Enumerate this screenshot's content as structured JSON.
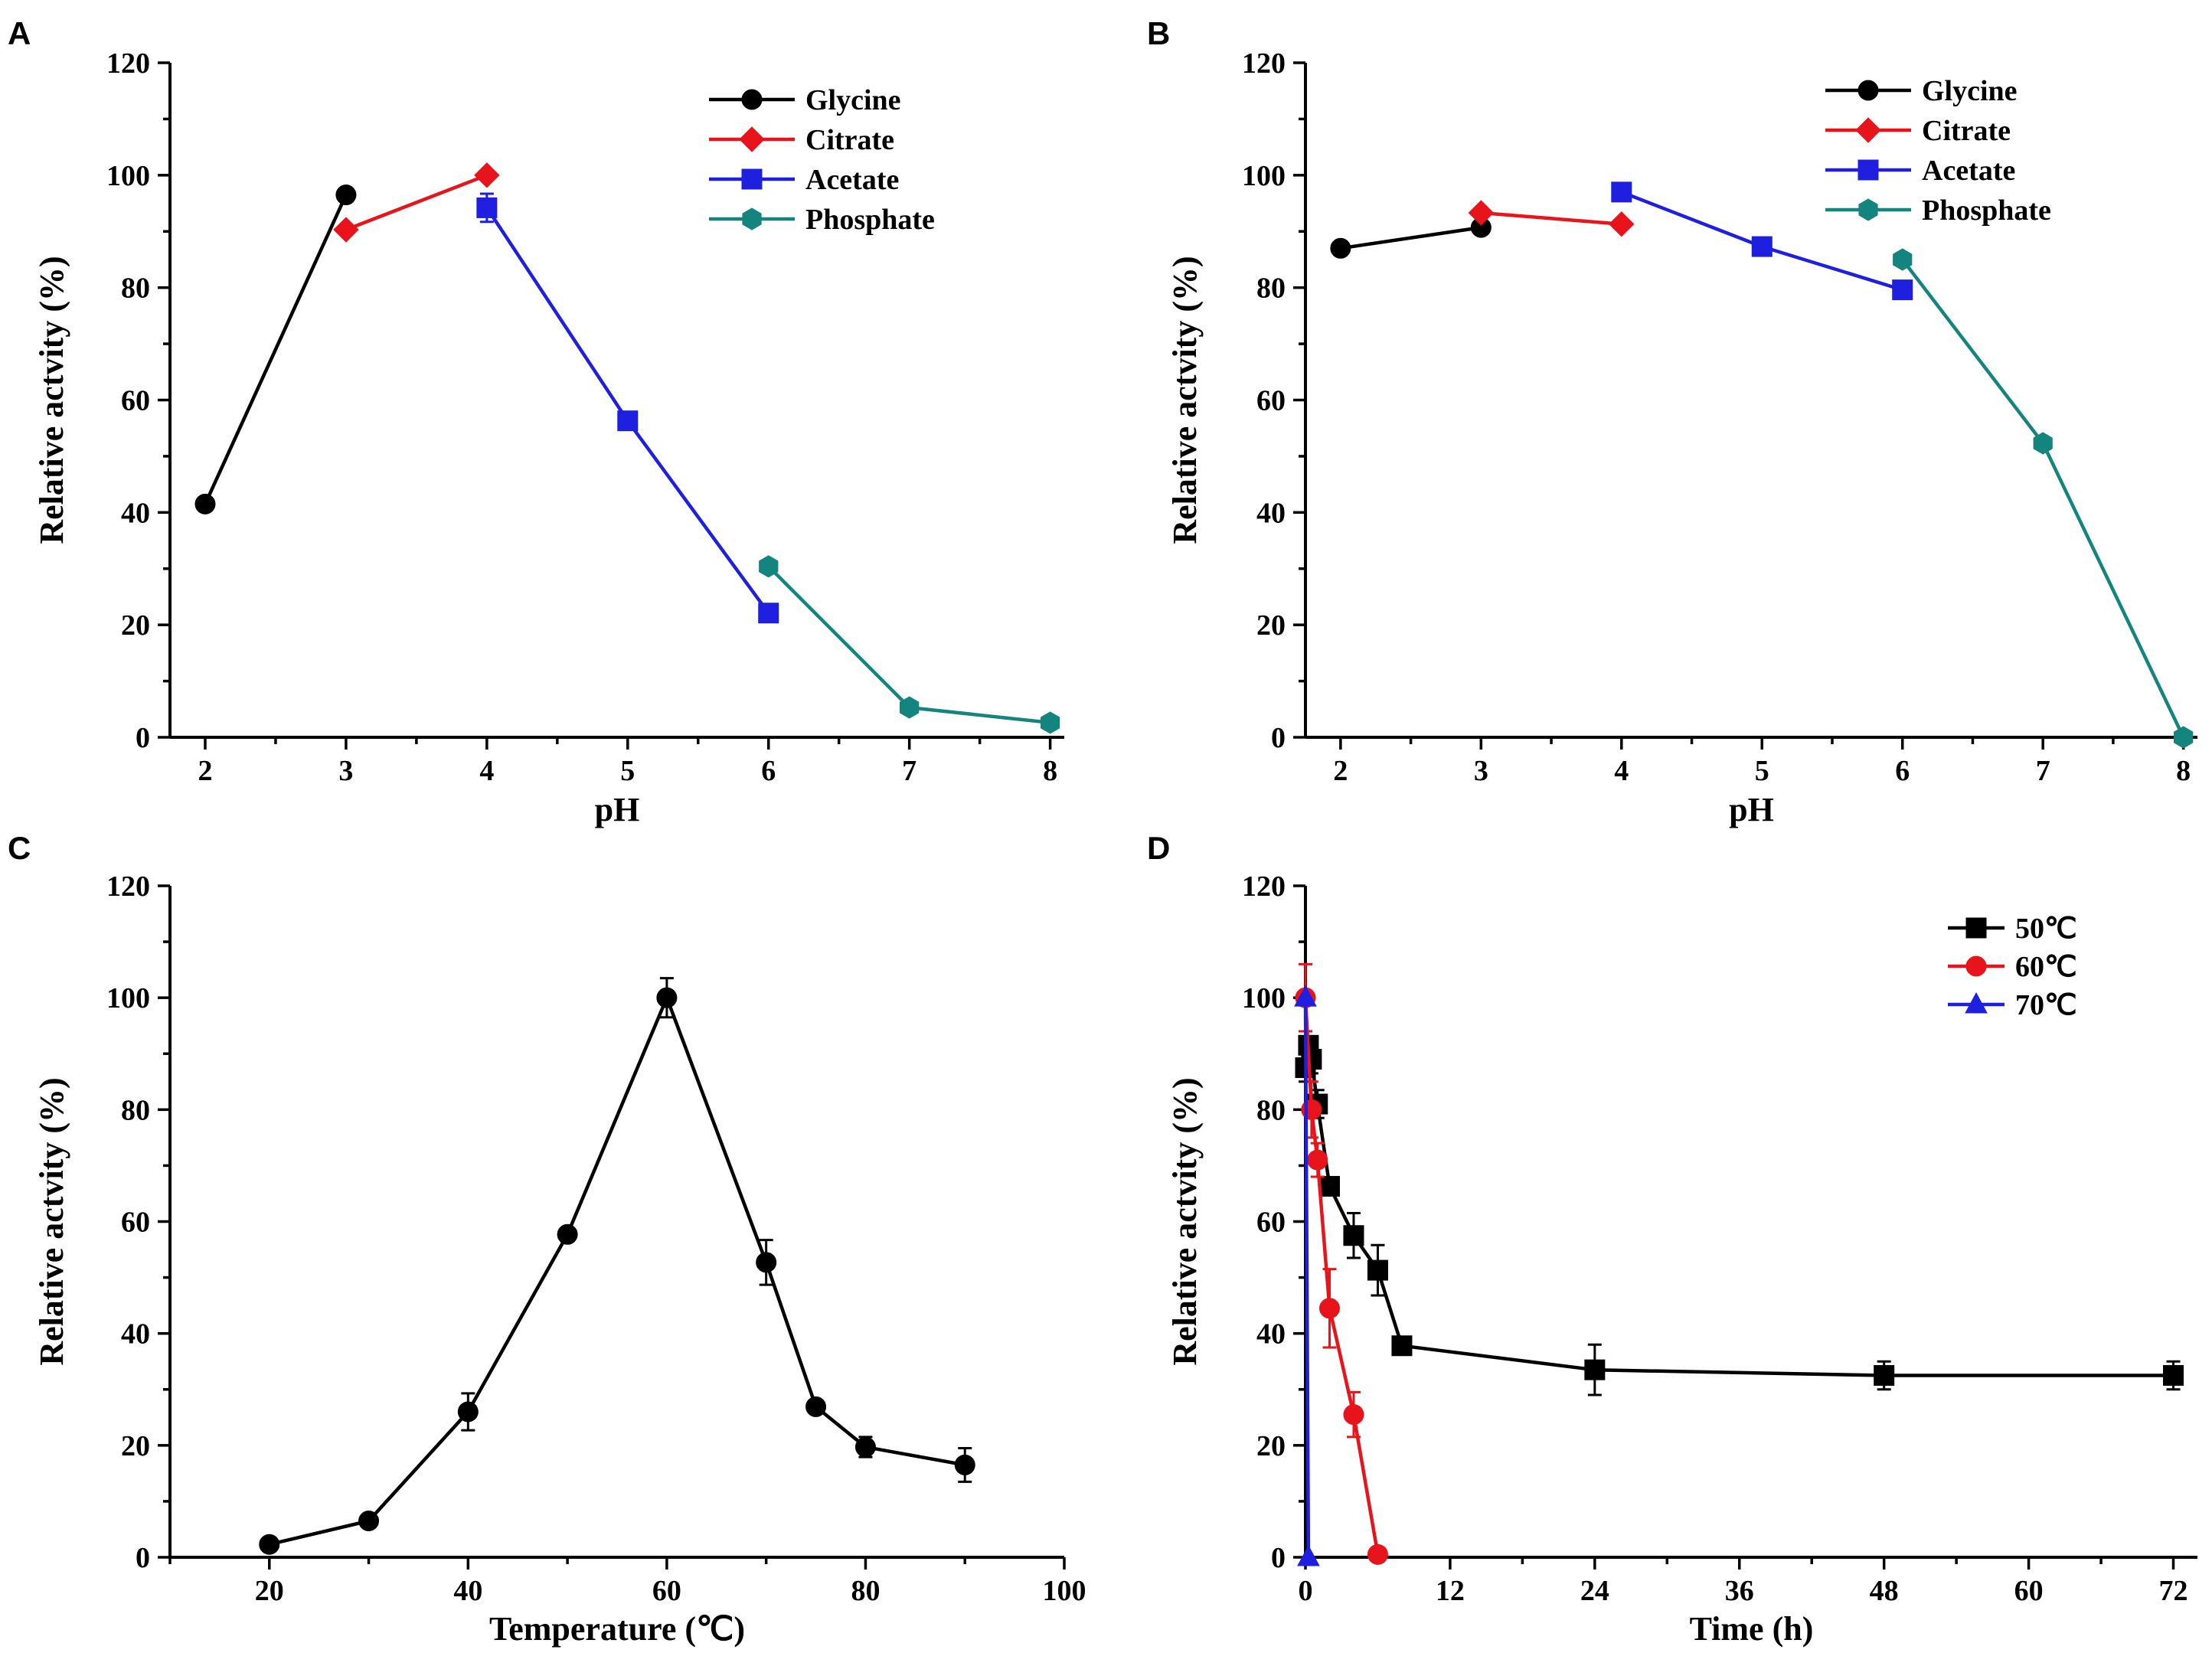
{
  "chart_data": [
    {
      "panel": "A",
      "type": "line",
      "xlabel": "pH",
      "ylabel": "Relative actvity (%)",
      "xlim": [
        1.75,
        8.1
      ],
      "ylim": [
        0,
        120
      ],
      "xticks": [
        2,
        3,
        4,
        5,
        6,
        7,
        8
      ],
      "yticks": [
        0,
        20,
        40,
        60,
        80,
        100,
        120
      ],
      "legend_position": "top-right",
      "series": [
        {
          "name": "Glycine",
          "color": "#000000",
          "marker": "circle",
          "x": [
            2,
            3
          ],
          "y": [
            41.5,
            96.5
          ],
          "err": [
            0,
            0
          ]
        },
        {
          "name": "Citrate",
          "color": "#e8141c",
          "marker": "diamond",
          "x": [
            3,
            4
          ],
          "y": [
            90.3,
            100.0
          ],
          "err": [
            0,
            0
          ]
        },
        {
          "name": "Acetate",
          "color": "#1f1fe0",
          "marker": "square",
          "x": [
            4,
            5,
            6
          ],
          "y": [
            94.2,
            56.3,
            22.1
          ],
          "err": [
            2.5,
            0,
            0
          ]
        },
        {
          "name": "Phosphate",
          "color": "#14857e",
          "marker": "hexagon",
          "x": [
            6,
            7,
            8
          ],
          "y": [
            30.4,
            5.3,
            2.6
          ],
          "err": [
            0,
            0,
            0
          ]
        }
      ]
    },
    {
      "panel": "B",
      "type": "line",
      "xlabel": "pH",
      "ylabel": "Relative actvity (%)",
      "xlim": [
        1.75,
        8.1
      ],
      "ylim": [
        0,
        120
      ],
      "xticks": [
        2,
        3,
        4,
        5,
        6,
        7,
        8
      ],
      "yticks": [
        0,
        20,
        40,
        60,
        80,
        100,
        120
      ],
      "legend_position": "top-right",
      "series": [
        {
          "name": "Glycine",
          "color": "#000000",
          "marker": "circle",
          "x": [
            2,
            3
          ],
          "y": [
            87.0,
            90.7
          ],
          "err": [
            0,
            0
          ]
        },
        {
          "name": "Citrate",
          "color": "#e8141c",
          "marker": "diamond",
          "x": [
            3,
            4
          ],
          "y": [
            93.3,
            91.3
          ],
          "err": [
            0,
            0
          ]
        },
        {
          "name": "Acetate",
          "color": "#1f1fe0",
          "marker": "square",
          "x": [
            4,
            5,
            6
          ],
          "y": [
            97.0,
            87.3,
            79.6
          ],
          "err": [
            0,
            0,
            0
          ]
        },
        {
          "name": "Phosphate",
          "color": "#14857e",
          "marker": "hexagon",
          "x": [
            6,
            7,
            8
          ],
          "y": [
            85.0,
            52.3,
            0.0
          ],
          "err": [
            0,
            0,
            0
          ]
        }
      ]
    },
    {
      "panel": "C",
      "type": "line",
      "xlabel": "Temperature (℃)",
      "ylabel": "Relative actvity (%)",
      "xlim": [
        10,
        100
      ],
      "ylim": [
        0,
        120
      ],
      "xticks": [
        20,
        40,
        60,
        80,
        100
      ],
      "yticks": [
        0,
        20,
        40,
        60,
        80,
        100,
        120
      ],
      "legend_position": "none",
      "series": [
        {
          "name": "",
          "color": "#000000",
          "marker": "circle",
          "x": [
            20,
            30,
            40,
            50,
            60,
            70,
            75,
            80,
            90
          ],
          "y": [
            2.3,
            6.5,
            26.0,
            57.7,
            100.0,
            52.7,
            26.9,
            19.7,
            16.5
          ],
          "err": [
            0,
            0,
            3.3,
            1.2,
            3.5,
            4.0,
            0,
            1.8,
            3.0
          ]
        }
      ]
    },
    {
      "panel": "D",
      "type": "line",
      "xlabel": "Time (h)",
      "ylabel": "Relative actvity (%)",
      "xlim": [
        0,
        74
      ],
      "ylim": [
        0,
        120
      ],
      "xticks": [
        0,
        12,
        24,
        36,
        48,
        60,
        72
      ],
      "yticks": [
        0,
        20,
        40,
        60,
        80,
        100,
        120
      ],
      "legend_position": "top-right",
      "series": [
        {
          "name": "50℃",
          "color": "#000000",
          "marker": "square",
          "x": [
            0,
            0.25,
            0.5,
            1,
            2,
            4,
            6,
            8,
            24,
            48,
            72
          ],
          "y": [
            87.5,
            91.5,
            89.0,
            81.0,
            66.3,
            57.5,
            51.3,
            37.8,
            33.5,
            32.5,
            32.5
          ],
          "err": [
            2.5,
            0,
            2.5,
            2.5,
            1.5,
            4.0,
            4.5,
            1.5,
            4.5,
            2.5,
            2.5
          ]
        },
        {
          "name": "60℃",
          "color": "#e8141c",
          "marker": "circle",
          "x": [
            0,
            0.5,
            1,
            2,
            4,
            6
          ],
          "y": [
            100.0,
            80.0,
            71.0,
            44.5,
            25.5,
            0.5
          ],
          "err": [
            6.0,
            5.0,
            3.0,
            7.0,
            4.0,
            0
          ]
        },
        {
          "name": "70℃",
          "color": "#1f1fe0",
          "marker": "triangle",
          "x": [
            0,
            0.25
          ],
          "y": [
            100.0,
            0.0
          ],
          "err": [
            0,
            0
          ]
        }
      ]
    }
  ]
}
